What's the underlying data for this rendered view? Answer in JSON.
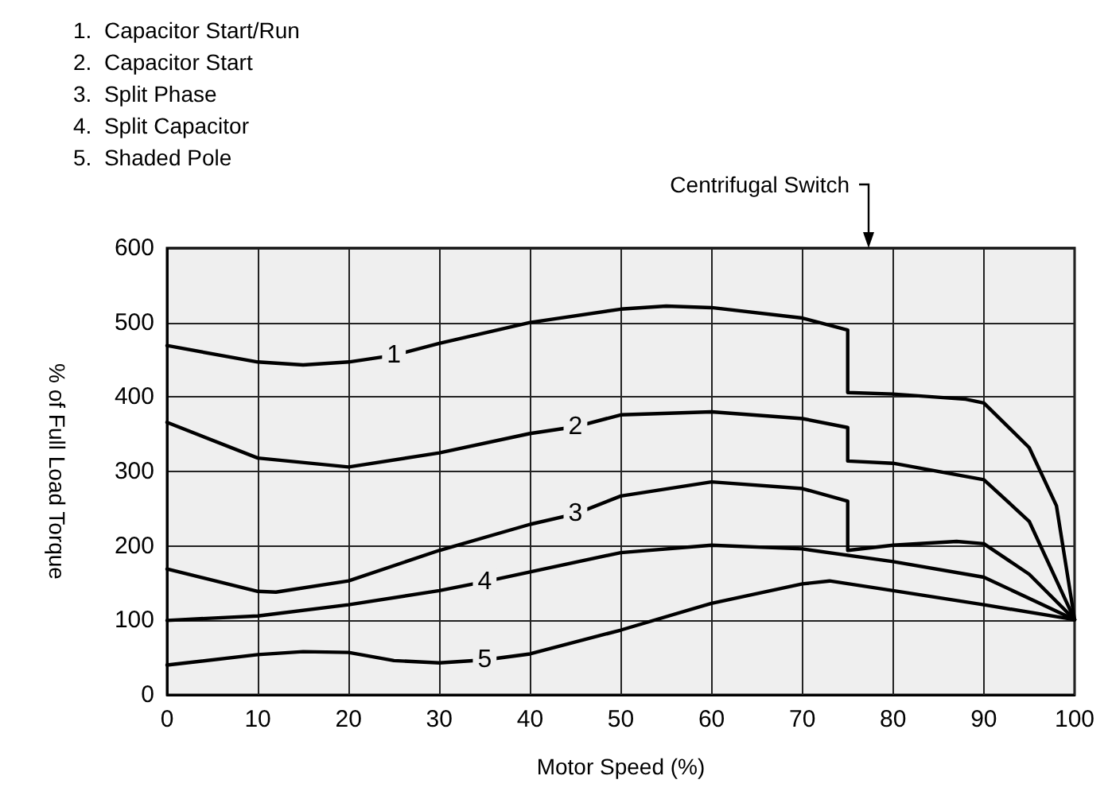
{
  "chart_data": {
    "type": "line",
    "xlabel": "Motor Speed (%)",
    "ylabel": "% of Full Load Torque",
    "xlim": [
      0,
      100
    ],
    "xticks": [
      0,
      10,
      20,
      30,
      40,
      50,
      60,
      70,
      80,
      90,
      100
    ],
    "ylim": [
      0,
      600
    ],
    "yticks": [
      0,
      100,
      200,
      300,
      400,
      500,
      600
    ],
    "grid": true,
    "marker": "none",
    "line_style": "solid",
    "series": [
      {
        "name": "1",
        "color": "#000000",
        "x": [
          0,
          10,
          15,
          20,
          25,
          30,
          40,
          50,
          55,
          60,
          70,
          75,
          75,
          80,
          88,
          90,
          95,
          98,
          100
        ],
        "values": [
          469,
          447,
          443,
          447,
          456,
          472,
          500,
          518,
          522,
          520,
          506,
          490,
          406,
          404,
          397,
          392,
          332,
          254,
          101
        ]
      },
      {
        "name": "2",
        "color": "#000000",
        "x": [
          0,
          10,
          20,
          30,
          40,
          45,
          50,
          60,
          70,
          75,
          75,
          80,
          90,
          95,
          100
        ],
        "values": [
          366,
          318,
          306,
          325,
          351,
          360,
          376,
          380,
          371,
          359,
          314,
          311,
          289,
          233,
          101
        ]
      },
      {
        "name": "3",
        "color": "#000000",
        "x": [
          0,
          10,
          12,
          20,
          30,
          40,
          45,
          50,
          60,
          70,
          75,
          75,
          80,
          87,
          90,
          95,
          100
        ],
        "values": [
          169,
          139,
          138,
          153,
          194,
          229,
          243,
          267,
          286,
          277,
          260,
          194,
          201,
          206,
          203,
          162,
          101
        ]
      },
      {
        "name": "4",
        "color": "#000000",
        "x": [
          0,
          10,
          20,
          30,
          35,
          40,
          50,
          60,
          70,
          80,
          90,
          100
        ],
        "values": [
          100,
          106,
          121,
          140,
          152,
          165,
          191,
          201,
          196,
          179,
          158,
          101
        ]
      },
      {
        "name": "5",
        "color": "#000000",
        "x": [
          0,
          10,
          15,
          20,
          25,
          30,
          35,
          40,
          50,
          60,
          70,
          73,
          80,
          90,
          100
        ],
        "values": [
          40,
          54,
          58,
          57,
          46,
          43,
          47,
          55,
          87,
          123,
          149,
          153,
          140,
          121,
          101
        ]
      }
    ],
    "annotations": [
      "1.  Capacitor Start/Run",
      "2.  Capacitor Start",
      "3.  Split Phase",
      "4.  Split Capacitor",
      "5.  Shaded Pole",
      "Centrifugal Switch"
    ]
  }
}
